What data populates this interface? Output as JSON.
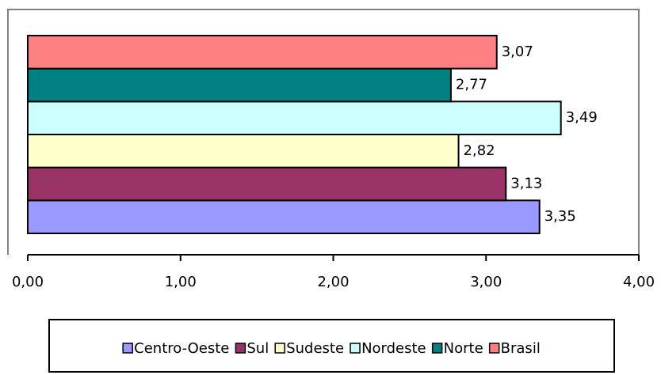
{
  "chart_data": {
    "type": "bar",
    "orientation": "horizontal",
    "categories": [
      null
    ],
    "series": [
      {
        "name": "Centro-Oeste",
        "color": "#9999ff",
        "values": [
          3.35
        ],
        "value_labels": [
          "3,35"
        ]
      },
      {
        "name": "Sul",
        "color": "#993366",
        "values": [
          3.13
        ],
        "value_labels": [
          "3,13"
        ]
      },
      {
        "name": "Sudeste",
        "color": "#ffffcc",
        "values": [
          2.82
        ],
        "value_labels": [
          "2,82"
        ]
      },
      {
        "name": "Nordeste",
        "color": "#ccffff",
        "values": [
          3.49
        ],
        "value_labels": [
          "3,49"
        ]
      },
      {
        "name": "Norte",
        "color": "#008080",
        "values": [
          2.77
        ],
        "value_labels": [
          "2,77"
        ]
      },
      {
        "name": "Brasil",
        "color": "#ff8080",
        "values": [
          3.07
        ],
        "value_labels": [
          "3,07"
        ]
      }
    ],
    "xlim": [
      0,
      4
    ],
    "xticks": [
      {
        "value": 0,
        "label": "0,00"
      },
      {
        "value": 1,
        "label": "1,00"
      },
      {
        "value": 2,
        "label": "2,00"
      },
      {
        "value": 3,
        "label": "3,00"
      },
      {
        "value": 4,
        "label": "4,00"
      }
    ],
    "grid": false,
    "legend": "bottom"
  }
}
